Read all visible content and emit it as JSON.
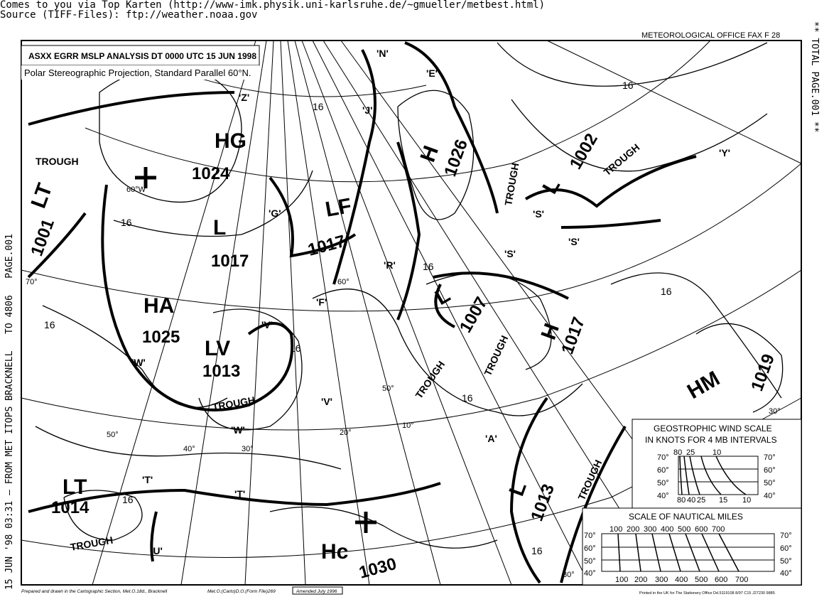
{
  "header": {
    "line1": "Comes to you via Top Karten (http://www-imk.physik.uni-karlsruhe.de/~gmueller/metbest.html)",
    "line2": "Source (TIFF-Files): ftp://weather.noaa.gov"
  },
  "fax": {
    "office": "METEOROLOGICAL OFFICE  FAX F 28",
    "title": "ASXX EGRR  MSLP ANALYSIS DT 0000 UTC 15 JUN 1998",
    "projection": "Polar Stereographic Projection, Standard Parallel 60°N.",
    "left_margin": "15 JUN '98 03:31 — FROM MET ITOPS BRACKNELL   TO 4806   PAGE.001",
    "right_margin": "** TOTAL PAGE.001 **",
    "footer_left": "Prepared and drawn in the Cartographic Section, Met.O.18d., Bracknell",
    "footer_mid": "Met.O.(Carto)D.O.(Form File)269",
    "footer_amended": "Amended July 1996",
    "footer_right": "Printed in the UK for The Stationery Office  Dd.5119108  8/97  C15  J27230  9885"
  },
  "pressure_systems": [
    {
      "type": "HG",
      "value": "1024"
    },
    {
      "type": "L",
      "value": "1017"
    },
    {
      "type": "LF",
      "value": "1017"
    },
    {
      "type": "HA",
      "value": "1025"
    },
    {
      "type": "LV",
      "value": "1013"
    },
    {
      "type": "LT",
      "value": "1001"
    },
    {
      "type": "H",
      "value": "1026"
    },
    {
      "type": "L",
      "value": "1002"
    },
    {
      "type": "L",
      "value": "1007"
    },
    {
      "type": "H",
      "value": "1017"
    },
    {
      "type": "HM",
      "value": "1019"
    },
    {
      "type": "LT",
      "value": "1014"
    },
    {
      "type": "Hc",
      "value": "1030"
    },
    {
      "type": "L",
      "value": "1013"
    }
  ],
  "front_labels": [
    "'Z'",
    "'G'",
    "'R'",
    "'F'",
    "'V'",
    "'V'",
    "'W'",
    "'W'",
    "'T'",
    "'T'",
    "'U'",
    "'A'",
    "'S'",
    "'S'",
    "'E'",
    "'J'",
    "'Y'",
    "'N'",
    "'S'"
  ],
  "trough_label": "TROUGH",
  "isobar_label": "16",
  "lat_labels": [
    "70°",
    "60°",
    "50°",
    "40°",
    "60°",
    "50°",
    "30°",
    "30°"
  ],
  "lon_labels": [
    "50°",
    "40°",
    "30°",
    "20°",
    "10°",
    "60°W"
  ],
  "wind_scale": {
    "title1": "GEOSTROPHIC WIND SCALE",
    "title2": "IN KNOTS FOR 4 MB INTERVALS",
    "top_ticks": [
      "80",
      "25",
      "10"
    ],
    "bottom_ticks": [
      "80",
      "40",
      "25",
      "15",
      "10"
    ],
    "lats": [
      "70°",
      "60°",
      "50°",
      "40°"
    ]
  },
  "nm_scale": {
    "title": "SCALE OF NAUTICAL MILES",
    "ticks": [
      "100",
      "200",
      "300",
      "400",
      "500",
      "600",
      "700"
    ],
    "lats": [
      "70°",
      "60°",
      "50°",
      "40°"
    ]
  }
}
